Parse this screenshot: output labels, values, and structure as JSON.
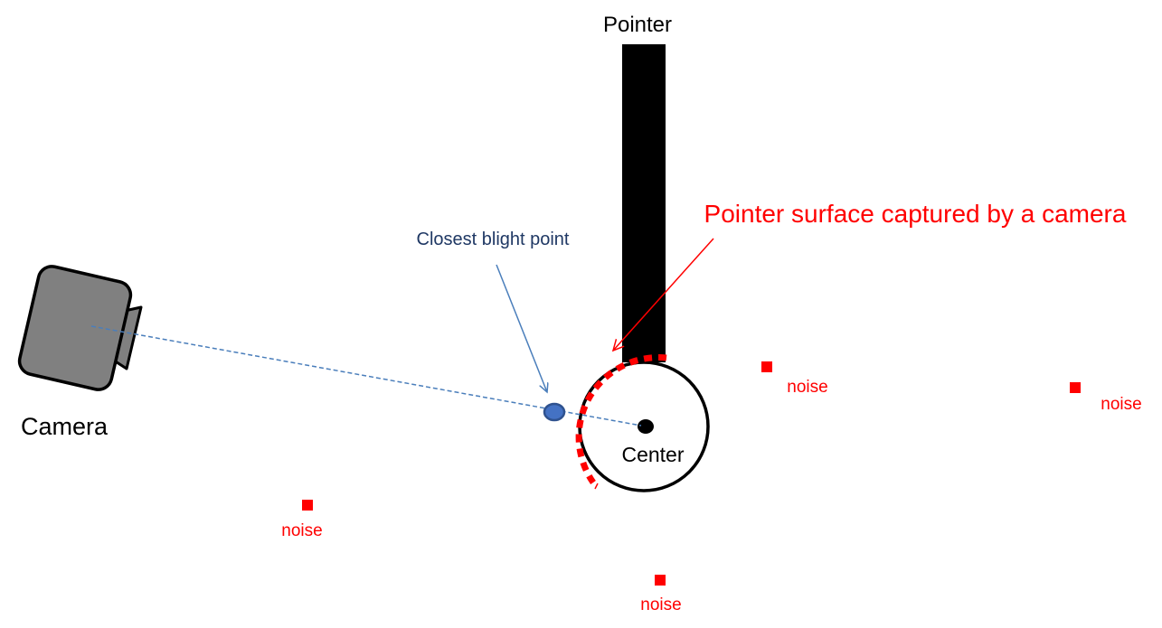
{
  "labels": {
    "pointer": "Pointer",
    "surface": "Pointer surface captured by a camera",
    "closest": "Closest blight point",
    "camera": "Camera",
    "center": "Center",
    "noise": "noise"
  },
  "colors": {
    "pointer_body": "#000000",
    "surface_dots": "#ff0000",
    "noise": "#ff0000",
    "camera_body": "#808080",
    "ray": "#4a7ebb",
    "bright_point": "#4472c4",
    "closest_label": "#1f3864"
  }
}
